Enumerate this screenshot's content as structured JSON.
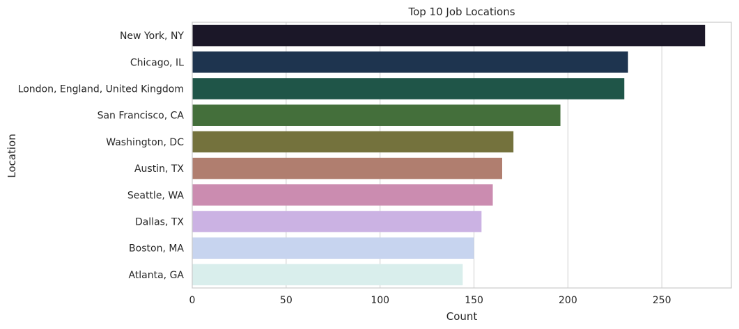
{
  "chart_data": {
    "type": "bar",
    "orientation": "horizontal",
    "title": "Top 10 Job Locations",
    "xlabel": "Count",
    "ylabel": "Location",
    "xlim": [
      0,
      287
    ],
    "xticks": [
      0,
      50,
      100,
      150,
      200,
      250
    ],
    "grid": true,
    "categories": [
      "New York, NY",
      "Chicago, IL",
      "London, England, United Kingdom",
      "San Francisco, CA",
      "Washington, DC",
      "Austin, TX",
      "Seattle, WA",
      "Dallas, TX",
      "Boston, MA",
      "Atlanta, GA"
    ],
    "values": [
      273,
      232,
      230,
      196,
      171,
      165,
      160,
      154,
      150,
      144
    ],
    "colors": [
      "#1b1728",
      "#1e344f",
      "#1f5548",
      "#446f3b",
      "#74723d",
      "#b07e6f",
      "#cb8cb0",
      "#cbb2e3",
      "#c7d4ef",
      "#d9eeec"
    ]
  }
}
